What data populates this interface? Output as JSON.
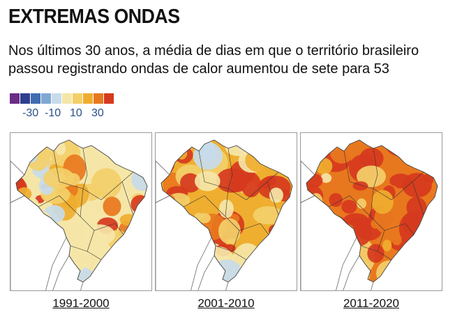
{
  "title": "EXTREMAS ONDAS",
  "subtitle": "Nos últimos 30 anos, a média de dias em que o território brasileiro passou registrando ondas de calor aumentou de sete para 53",
  "legend": {
    "colors": [
      "#6b2d86",
      "#2d3f8f",
      "#3f6db0",
      "#7fa8d4",
      "#c7dbea",
      "#f5e6a8",
      "#f3cf6a",
      "#efae2f",
      "#e8781e",
      "#d63a1e"
    ],
    "labels": [
      "-30",
      "-10",
      "10",
      "30"
    ]
  },
  "maps": [
    {
      "period": "1991-2000",
      "heat_level": "low"
    },
    {
      "period": "2001-2010",
      "heat_level": "medium"
    },
    {
      "period": "2011-2020",
      "heat_level": "high"
    }
  ],
  "palette": {
    "background": "#ffffff",
    "land_outside": "#ffffff",
    "border_lines": "#555555",
    "state_lines": "#333333"
  }
}
